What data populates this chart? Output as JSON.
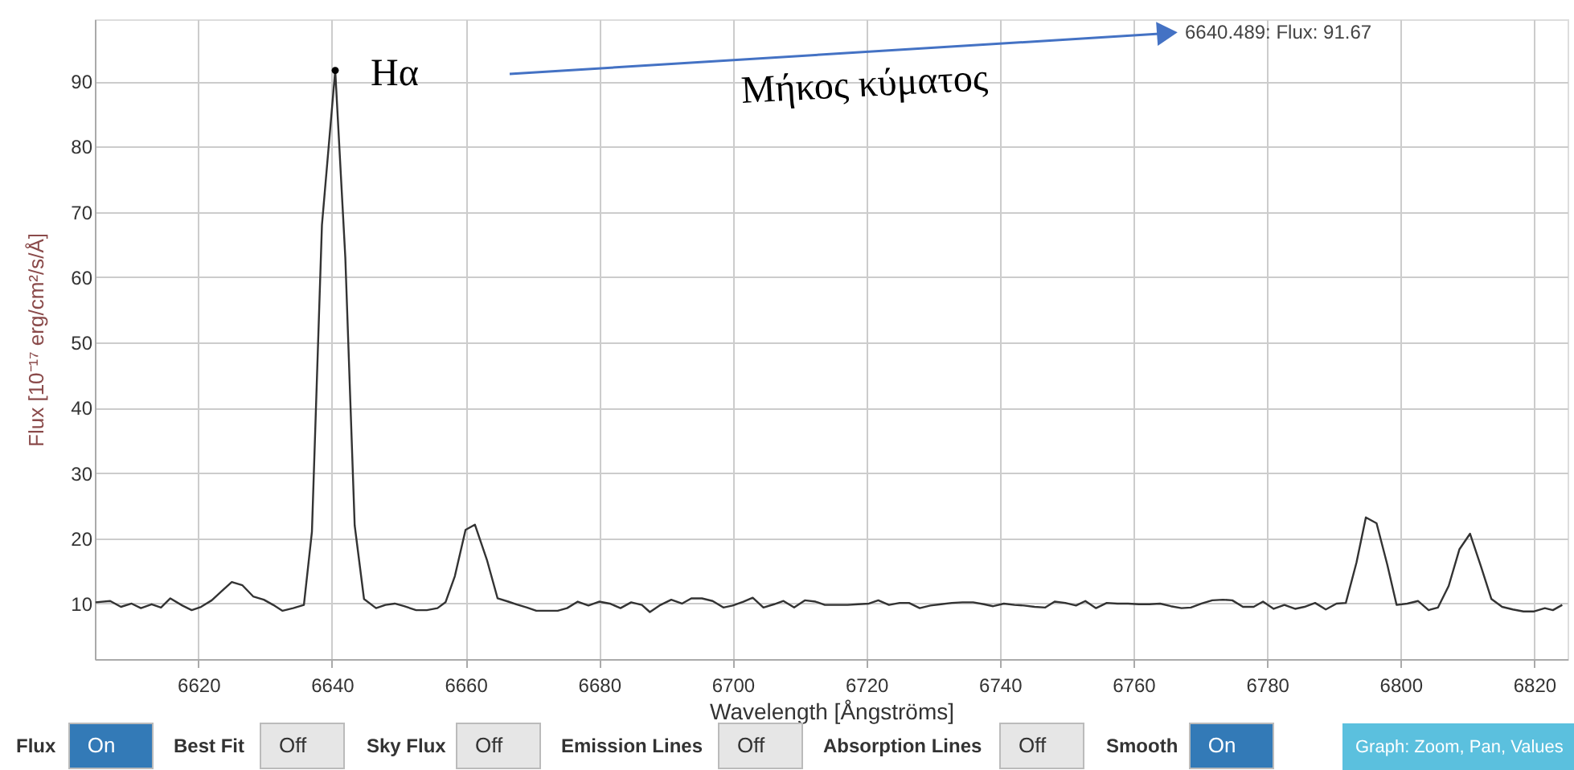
{
  "chart_data": {
    "type": "line",
    "xlabel": "Wavelength [Ångströms]",
    "ylabel": "Flux [10⁻¹⁷ erg/cm²/s/Å]",
    "xlim": [
      6604.5,
      6825
    ],
    "xticks": [
      6620,
      6640,
      6660,
      6680,
      6700,
      6720,
      6740,
      6760,
      6780,
      6800,
      6820
    ],
    "ylim": [
      1.5,
      99.5
    ],
    "yticks": [
      10,
      20,
      30,
      40,
      50,
      60,
      70,
      80,
      90
    ],
    "grid": true,
    "marker": "none",
    "line_style": "solid",
    "series": [
      {
        "color": "#333333",
        "x": [
          6604.6,
          6606.8,
          6608.4,
          6610,
          6611.4,
          6613,
          6614.4,
          6615.8,
          6617.6,
          6619,
          6620.4,
          6622,
          6623.6,
          6625,
          6626.6,
          6628.2,
          6629.8,
          6631.2,
          6632.6,
          6634.2,
          6635.8,
          6637,
          6638.5,
          6640.489,
          6642,
          6643.4,
          6644.8,
          6646.6,
          6648,
          6649.4,
          6650.8,
          6652.6,
          6654.2,
          6655.8,
          6657,
          6658.4,
          6660,
          6661.4,
          6663.2,
          6664.8,
          6666.4,
          6667.6,
          6669.2,
          6670.6,
          6672.2,
          6673.8,
          6675.2,
          6676.8,
          6678.4,
          6680,
          6681.6,
          6683.2,
          6684.8,
          6686.4,
          6687.6,
          6689.2,
          6690.8,
          6692.4,
          6693.8,
          6695.4,
          6697,
          6698.6,
          6700,
          6701.6,
          6703,
          6704.6,
          6706.2,
          6707.6,
          6709.2,
          6710.8,
          6712.4,
          6713.8,
          6715.6,
          6717.2,
          6718.8,
          6720.4,
          6721.8,
          6723.4,
          6725,
          6726.4,
          6728,
          6729.6,
          6731.2,
          6732.8,
          6734.4,
          6736,
          6737.6,
          6739,
          6740.6,
          6742.2,
          6743.6,
          6745.2,
          6746.8,
          6748.2,
          6749.8,
          6751.4,
          6752.8,
          6754.4,
          6756,
          6757.6,
          6759.2,
          6760.8,
          6762.4,
          6764,
          6765.6,
          6767.2,
          6768.6,
          6770.2,
          6771.8,
          6773.4,
          6774.8,
          6776.4,
          6778,
          6779.4,
          6781,
          6782.6,
          6784.2,
          6785.6,
          6787.2,
          6788.8,
          6790.4,
          6791.8,
          6793.4,
          6794.8,
          6796.4,
          6798,
          6799.4,
          6801,
          6802.6,
          6804.2,
          6805.6,
          6807.2,
          6808.8,
          6810.4,
          6812,
          6813.6,
          6815.2,
          6816.8,
          6818.4,
          6820,
          6821.6,
          6822.8,
          6824.2
        ],
        "values": [
          10.2,
          10.4,
          9.5,
          10,
          9.3,
          9.9,
          9.4,
          10.8,
          9.7,
          9.0,
          9.5,
          10.5,
          12,
          13.3,
          12.8,
          11.1,
          10.6,
          9.8,
          8.9,
          9.3,
          9.8,
          21,
          68,
          91.67,
          63,
          22,
          10.7,
          9.3,
          9.8,
          10,
          9.6,
          9.0,
          9.0,
          9.3,
          10.2,
          14.2,
          21.3,
          22.1,
          16.7,
          10.8,
          10.3,
          9.9,
          9.4,
          8.9,
          8.9,
          8.9,
          9.3,
          10.3,
          9.7,
          10.3,
          10,
          9.3,
          10.2,
          9.8,
          8.7,
          9.8,
          10.6,
          10,
          10.8,
          10.8,
          10.4,
          9.4,
          9.7,
          10.3,
          10.9,
          9.4,
          9.9,
          10.4,
          9.4,
          10.5,
          10.3,
          9.8,
          9.8,
          9.8,
          9.9,
          10,
          10.5,
          9.8,
          10.1,
          10.1,
          9.3,
          9.7,
          9.9,
          10.1,
          10.2,
          10.2,
          9.9,
          9.6,
          10,
          9.8,
          9.7,
          9.5,
          9.4,
          10.3,
          10.1,
          9.7,
          10.4,
          9.3,
          10.1,
          10,
          10,
          9.9,
          9.9,
          10,
          9.6,
          9.3,
          9.4,
          10,
          10.5,
          10.6,
          10.5,
          9.5,
          9.5,
          10.3,
          9.2,
          9.8,
          9.2,
          9.5,
          10.1,
          9.1,
          10,
          10.1,
          16.3,
          23.2,
          22.3,
          16,
          9.8,
          10,
          10.4,
          9.0,
          9.4,
          12.7,
          18.3,
          20.7,
          15.8,
          10.7,
          9.5,
          9.1,
          8.8,
          8.8,
          9.3,
          9.0,
          9.8
        ]
      }
    ],
    "annotations": [
      {
        "text": "Hα",
        "x": 6640.489,
        "y": 91.67
      },
      "Μήκος κύματος",
      "6640.489: Flux: 91.67",
      "Flux",
      "On",
      "Best Fit",
      "Off",
      "Sky Flux",
      "Off",
      "Emission Lines",
      "Off",
      "Absorption Lines",
      "Off",
      "Smooth",
      "On",
      "Graph: Zoom, Pan, Values"
    ]
  }
}
